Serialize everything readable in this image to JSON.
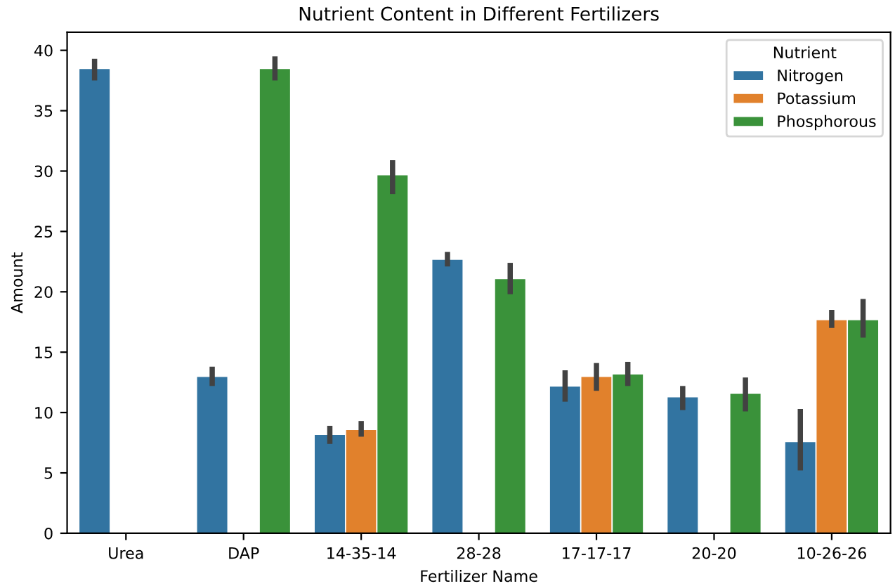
{
  "chart_data": {
    "type": "bar",
    "title": "Nutrient Content in Different Fertilizers",
    "xlabel": "Fertilizer Name",
    "ylabel": "Amount",
    "legend_title": "Nutrient",
    "legend": "top right",
    "grid": false,
    "categories": [
      "Urea",
      "DAP",
      "14-35-14",
      "28-28",
      "17-17-17",
      "20-20",
      "10-26-26"
    ],
    "ylim": [
      0,
      41.5
    ],
    "yticks": [
      0,
      5,
      10,
      15,
      20,
      25,
      30,
      35,
      40
    ],
    "series": [
      {
        "name": "Nitrogen",
        "color": "#3274a1",
        "values": [
          38.5,
          13.0,
          8.2,
          22.7,
          12.2,
          11.3,
          7.6
        ],
        "errors": [
          [
            37.5,
            39.3
          ],
          [
            12.2,
            13.8
          ],
          [
            7.4,
            8.9
          ],
          [
            22.1,
            23.3
          ],
          [
            10.9,
            13.5
          ],
          [
            10.2,
            12.2
          ],
          [
            5.2,
            10.3
          ]
        ]
      },
      {
        "name": "Potassium",
        "color": "#e1812c",
        "values": [
          null,
          null,
          8.6,
          null,
          13.0,
          null,
          17.7
        ],
        "errors": [
          null,
          null,
          [
            8.0,
            9.3
          ],
          null,
          [
            11.8,
            14.1
          ],
          null,
          [
            17.0,
            18.5
          ]
        ]
      },
      {
        "name": "Phosphorous",
        "color": "#3a923a",
        "values": [
          null,
          38.5,
          29.7,
          21.1,
          13.2,
          11.6,
          17.7
        ],
        "errors": [
          null,
          [
            37.5,
            39.5
          ],
          [
            28.1,
            30.9
          ],
          [
            19.8,
            22.4
          ],
          [
            12.2,
            14.2
          ],
          [
            10.1,
            12.9
          ],
          [
            16.2,
            19.4
          ]
        ]
      }
    ]
  }
}
